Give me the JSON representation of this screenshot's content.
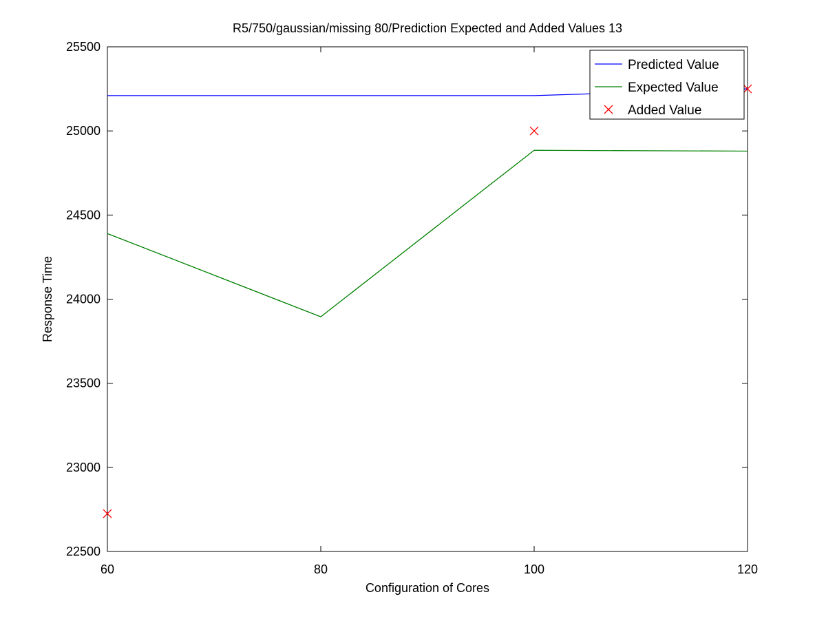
{
  "chart_data": {
    "type": "line",
    "title": "R5/750/gaussian/missing 80/Prediction Expected and Added Values 13",
    "xlabel": "Configuration of Cores",
    "ylabel": "Response Time",
    "xlim": [
      60,
      120
    ],
    "ylim": [
      22500,
      25500
    ],
    "xticks": [
      60,
      80,
      100,
      120
    ],
    "yticks": [
      22500,
      23000,
      23500,
      24000,
      24500,
      25000,
      25500
    ],
    "grid": false,
    "legend_position": "top-right",
    "series": [
      {
        "name": "Predicted Value",
        "style": "line",
        "color": "#0000ff",
        "x": [
          60,
          80,
          100,
          120
        ],
        "y": [
          25210,
          25210,
          25210,
          25250
        ]
      },
      {
        "name": "Expected Value",
        "style": "line",
        "color": "#008000",
        "x": [
          60,
          80,
          100,
          120
        ],
        "y": [
          24390,
          23895,
          24885,
          24880
        ]
      },
      {
        "name": "Added Value",
        "style": "marker-x",
        "color": "#ff0000",
        "x": [
          60,
          100,
          120
        ],
        "y": [
          22725,
          25000,
          25250
        ]
      }
    ]
  }
}
